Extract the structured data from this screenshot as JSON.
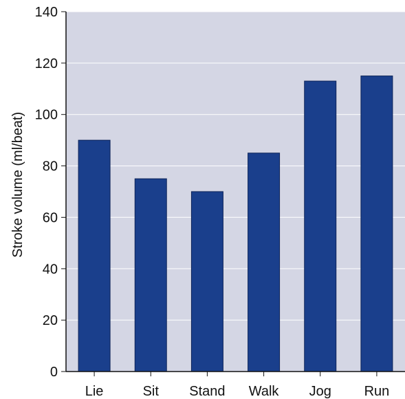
{
  "chart_data": {
    "type": "bar",
    "categories": [
      "Lie",
      "Sit",
      "Stand",
      "Walk",
      "Jog",
      "Run"
    ],
    "values": [
      90,
      75,
      70,
      85,
      113,
      115
    ],
    "title": "",
    "xlabel": "",
    "ylabel": "Stroke volume (ml/beat)",
    "ylim": [
      0,
      140
    ],
    "yticks": [
      0,
      20,
      40,
      60,
      80,
      100,
      120,
      140
    ],
    "grid": true,
    "legend": "none",
    "colors": {
      "bar": "#1a3f8c",
      "bar_edge": "#0d2358",
      "plot_background": "#d4d6e4",
      "grid": "#ffffff",
      "axis": "#111111"
    }
  }
}
